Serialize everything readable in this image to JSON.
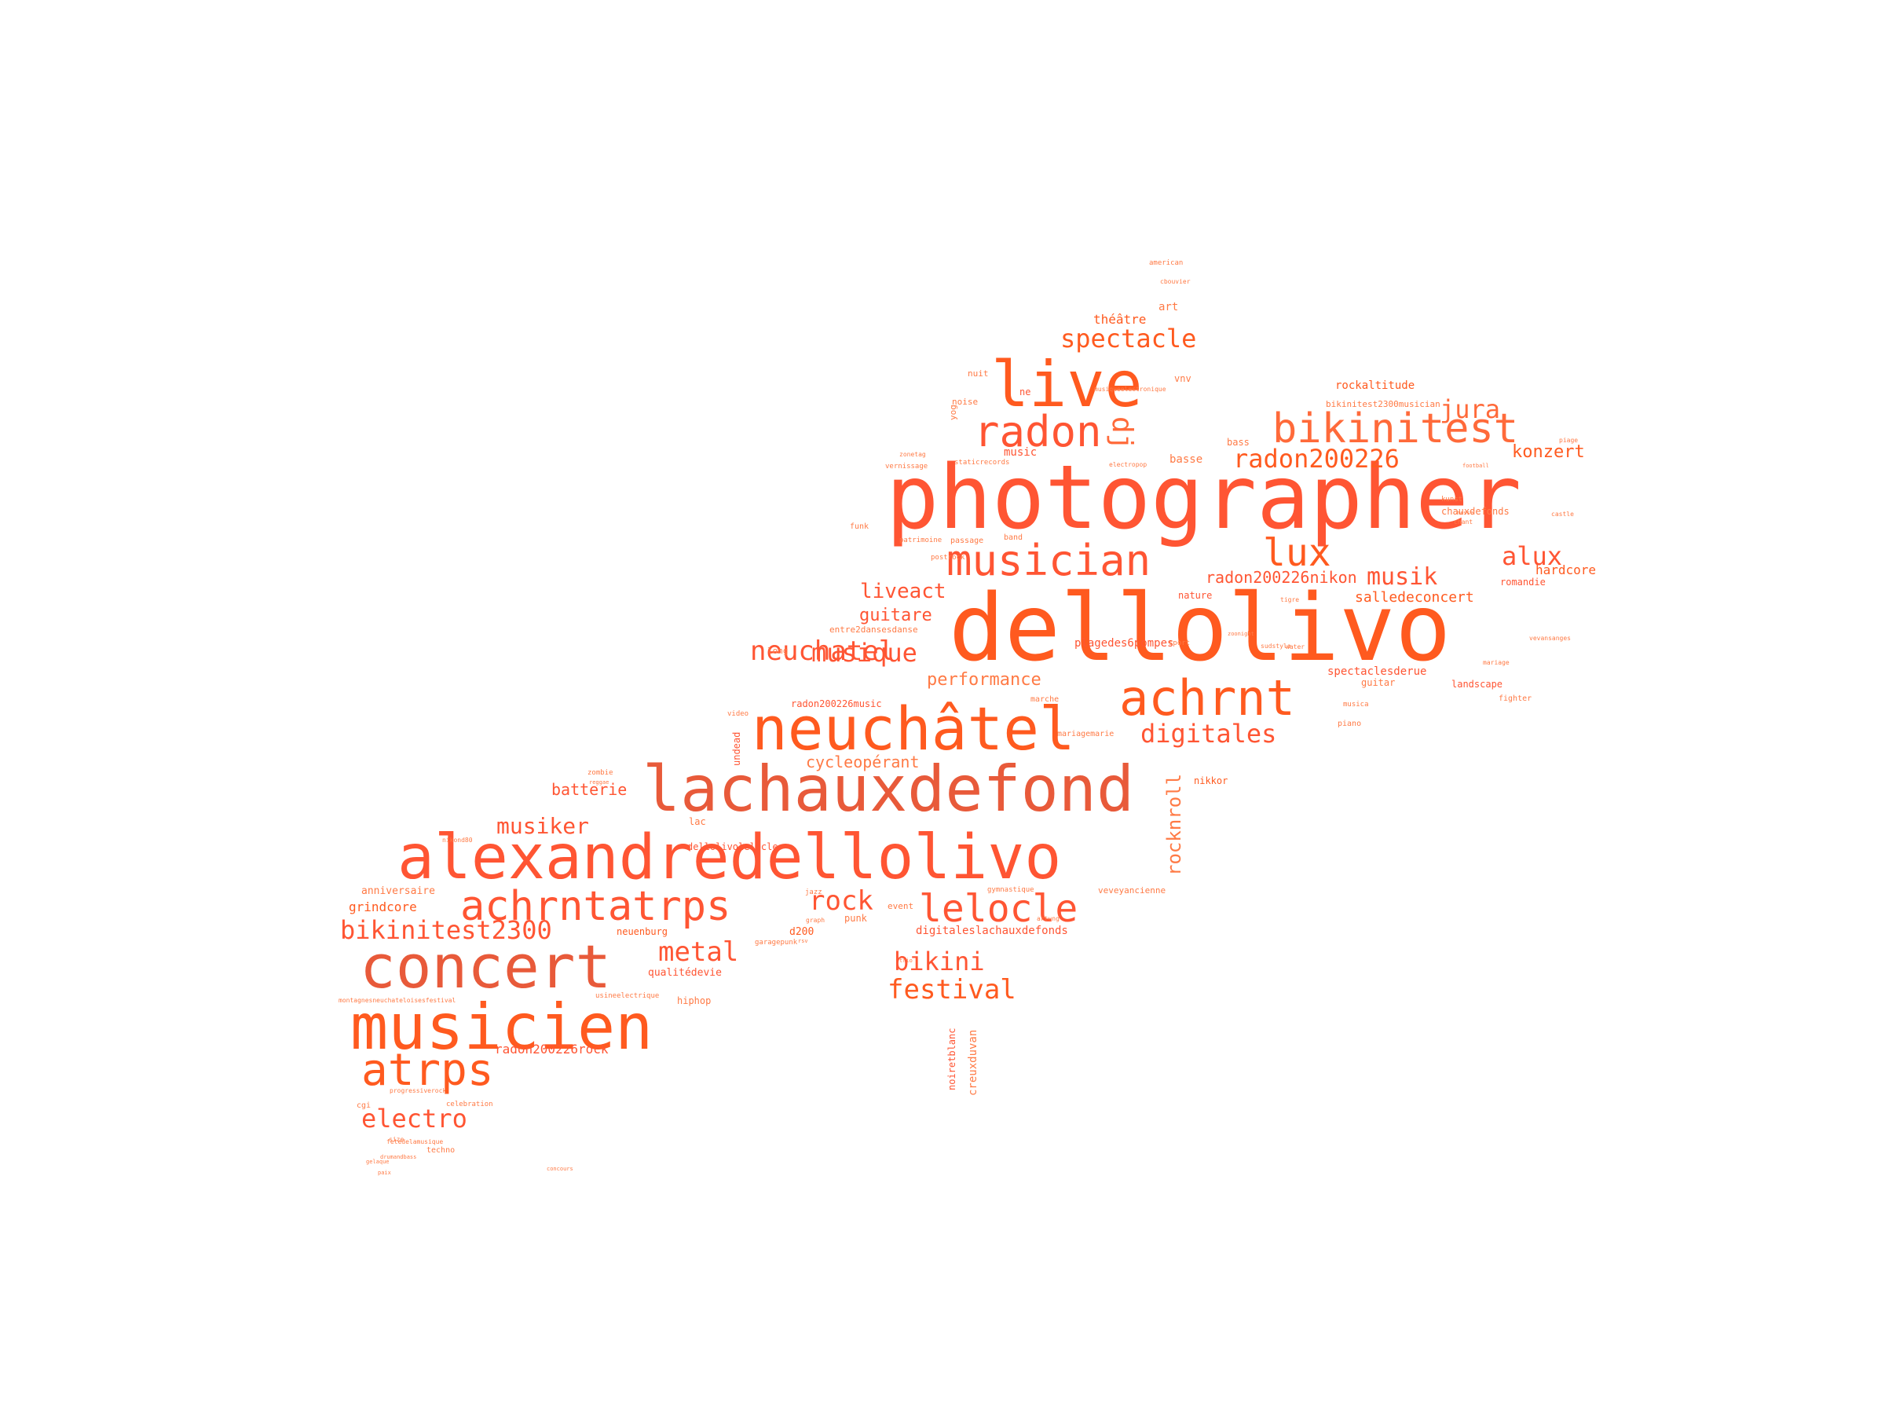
{
  "palette": {
    "a": "#ff5a1f",
    "b": "#ff6a3a",
    "c": "#ff5533",
    "d": "#ff7a45",
    "e": "#e85a3a"
  },
  "words": {
    "w_photographer": "photographer",
    "w_dellolivo": "dellolivo",
    "w_lachauxdefond": "lachauxdefond",
    "w_alexandredellolivo": "alexandredellolivo",
    "w_neuchatel_acc": "neuchâtel",
    "w_concert": "concert",
    "w_musicien": "musicien",
    "w_live": "live",
    "w_radon": "radon",
    "w_bikinitest": "bikinitest",
    "w_musician": "musician",
    "w_achrnt": "achrnt",
    "w_achrntatrps": "achrntatrps",
    "w_atrps": "atrps",
    "w_lelocle": "lelocle",
    "w_lux": "lux",
    "w_radon200226": "radon200226",
    "w_spectacle": "spectacle",
    "w_jura": "jura",
    "w_dj": "dj",
    "w_bikinitest2300": "bikinitest2300",
    "w_neuchatel": "neuchatel",
    "w_musique": "musique",
    "w_digitales": "digitales",
    "w_rock": "rock",
    "w_metal": "metal",
    "w_musiker": "musiker",
    "w_electro": "electro",
    "w_bikini": "bikini",
    "w_festival": "festival",
    "w_alux": "alux",
    "w_musik": "musik",
    "w_konzert": "konzert",
    "w_liveact": "liveact",
    "w_guitare": "guitare",
    "w_performance": "performance",
    "w_cycleoperant": "cycleopérant",
    "w_batterie": "batterie",
    "w_rocknroll": "rocknroll",
    "w_radon200226nikon": "radon200226nikon",
    "w_salledeconcert": "salledeconcert",
    "w_hardcore": "hardcore",
    "w_rockaltitude": "rockaltitude",
    "w_theatre": "théâtre",
    "w_art": "art",
    "w_music": "music",
    "w_basse": "basse",
    "w_bass": "bass",
    "w_ne": "ne",
    "w_vnv": "vnv",
    "w_grindcore": "grindcore",
    "w_anniversaire": "anniversaire",
    "w_neuenburg": "neuenburg",
    "w_punk": "punk",
    "w_d200": "d200",
    "w_qualitedevie": "qualitédevie",
    "w_hiphop": "hiphop",
    "w_radon200226rock": "radon200226rock",
    "w_creuxduvan": "creuxduvan",
    "w_noiretblanc": "noiretblanc",
    "w_digitaleslachauxdefonds": "digitaleslachauxdefonds",
    "w_dellolivolelocle": "dellolivolelocle",
    "w_lac": "lac",
    "w_radon200226music": "radon200226music",
    "w_plagedes6pompes": "plagedes6pompes",
    "w_spectaclesderue": "spectaclesderue",
    "w_guitar": "guitar",
    "w_landscape": "landscape",
    "w_chauxdefonds": "chauxdefonds",
    "w_romandie": "romandie",
    "w_nature": "nature",
    "w_nikkor": "nikkor",
    "w_undead": "undead",
    "w_long": "long",
    "w_entre2dansesdanse": "entre2dansesdanse",
    "w_veveyancienne": "veveyancienne",
    "w_event": "event",
    "w_noise": "noise",
    "w_yog": "yog",
    "w_nuit": "nuit",
    "w_funk": "funk",
    "w_band": "band",
    "w_passage": "passage",
    "w_postrock": "postrock",
    "w_kunst": "kunst",
    "w_piano": "piano",
    "w_mariagemarie": "mariagemarie",
    "w_marche": "marche",
    "w_fighter": "fighter",
    "w_american": "american",
    "w_sport": "sport",
    "w_video": "video",
    "w_techno": "techno",
    "w_celebration": "celebration",
    "w_cgi": "cgi",
    "w_gymnastique": "gymnastique",
    "w_musica": "musica",
    "w_bikinitest2300musician": "bikinitest2300musician",
    "w_jazz": "jazz",
    "w_mariage": "mariage",
    "w_patrimoine": "patrimoine",
    "w_vernissage": "vernissage",
    "w_staticrecords": "staticrecords",
    "w_zonetag": "zonetag",
    "w_electropop": "electropop",
    "w_musiqueelectronique": "musiqueelectronique",
    "w_usineelectrique": "usineelectrique",
    "w_montagnesneuchateloisesfestival": "montagnesneuchateloisesfestival",
    "w_progressiverock": "progressiverock",
    "w_fetedelamusique": "fetedelamusique",
    "w_drumandbass": "drumandbass",
    "w_gelaque": "gelaque",
    "w_paix": "paix",
    "w_size": "size",
    "w_cbouvier": "cbouvier",
    "w_garagepunk": "garagepunk",
    "w_zombie": "zombie",
    "w_reggae": "reggae",
    "w_nikond80": "nikond80",
    "w_tigre": "tigre",
    "w_water": "water",
    "w_castle": "castle",
    "w_vevansanges": "vevansanges",
    "w_zoonight": "zoonight",
    "w_sudstyle": "sudstyle",
    "w_artung": "artung",
    "w_rsv": "rsv",
    "w_concours": "concours",
    "w_piage": "piage",
    "w_football": "football",
    "w_trio": "trio",
    "w_graph": "graph",
    "w_chant": "chant",
    "w_messe": "messe"
  },
  "icons": {
    "shape_mask": "feather-shape"
  }
}
